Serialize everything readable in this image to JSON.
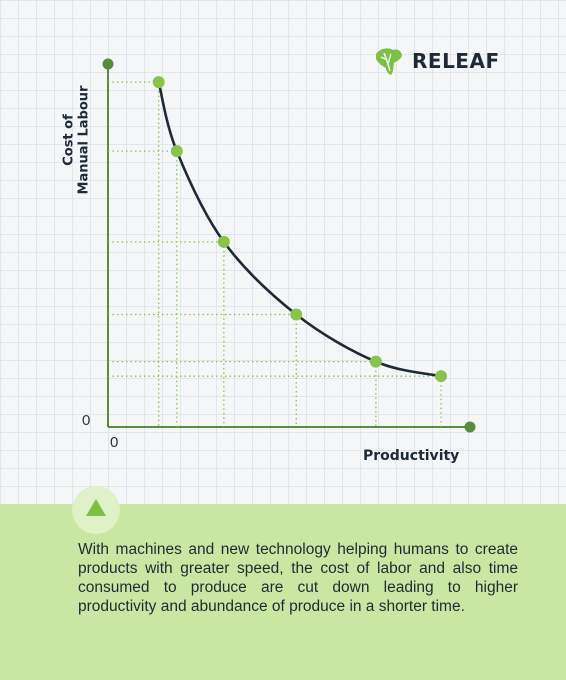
{
  "brand": {
    "name": "RELEAF",
    "logo_icon": "leaf-africa-icon",
    "color": "#7cc142"
  },
  "chart_data": {
    "type": "line",
    "xlabel": "Productivity",
    "ylabel": "Cost of\nManual Labour",
    "x_origin_label": "0",
    "y_origin_label": "0",
    "xlim": [
      0,
      100
    ],
    "ylim": [
      0,
      100
    ],
    "grid": false,
    "x": [
      14,
      19,
      32,
      52,
      74,
      92
    ],
    "values": [
      95,
      76,
      51,
      31,
      18,
      14
    ],
    "line_color": "#1f2a36",
    "point_color": "#8bc34a",
    "axis_color": "#5a8a3c"
  },
  "caption": {
    "text": "With machines and new technology helping humans to create products with greater speed, the cost of labor and also time consumed to produce are cut down leading to higher productivity and abundance of produce in a shorter time.",
    "badge_icon": "triangle-up-icon",
    "background": "#c9e7a2"
  }
}
